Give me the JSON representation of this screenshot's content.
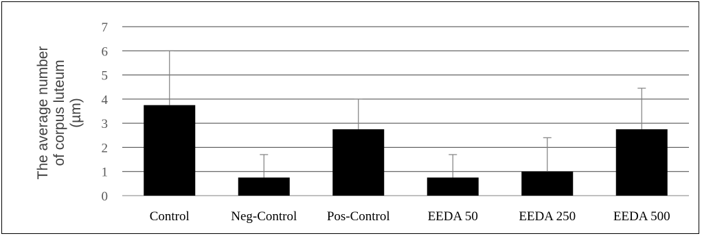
{
  "chart_data": {
    "type": "bar",
    "title": "",
    "xlabel": "",
    "ylabel_lines": [
      "The average number",
      "of corpus luteum",
      "(µm)"
    ],
    "categories": [
      "Control",
      "Neg-Control",
      "Pos-Control",
      "EEDA 50",
      "EEDA 250",
      "EEDA 500"
    ],
    "values": [
      3.75,
      0.75,
      2.75,
      0.75,
      1.0,
      2.75
    ],
    "error_plus": [
      2.25,
      0.95,
      1.25,
      0.95,
      1.4,
      1.7
    ],
    "ylim": [
      0,
      7
    ],
    "yticks": [
      "0",
      "1",
      "2",
      "3",
      "4",
      "5",
      "6",
      "7"
    ],
    "grid": true,
    "legend": "none",
    "colors": {
      "bar": "#000000",
      "grid": "#404040",
      "error_bar": "#7f7f7f"
    }
  }
}
